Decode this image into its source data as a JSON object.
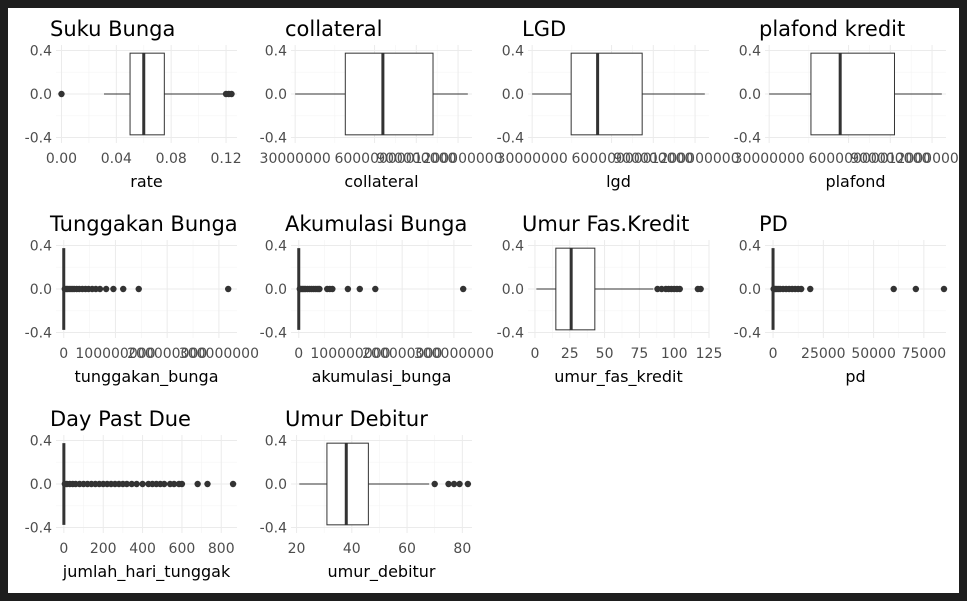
{
  "chart_data": [
    {
      "type": "boxplot",
      "title": "Suku Bunga",
      "xlabel": "rate",
      "xlim": [
        -0.004,
        0.128
      ],
      "xticks": [
        {
          "v": 0,
          "label": "0.00"
        },
        {
          "v": 0.04,
          "label": "0.04"
        },
        {
          "v": 0.08,
          "label": "0.08"
        },
        {
          "v": 0.12,
          "label": "0.12"
        }
      ],
      "yticks": [
        "0.4",
        "0.0",
        "-0.4"
      ],
      "box": {
        "q1": 0.05,
        "median": 0.06,
        "q3": 0.075,
        "whisker_low": 0.031,
        "whisker_high": 0.12
      },
      "outliers": [
        0.0,
        0.12,
        0.122,
        0.124
      ]
    },
    {
      "type": "boxplot",
      "title": "collateral",
      "xlabel": "collateral",
      "xlim": [
        0,
        1300000000
      ],
      "xticks": [
        {
          "v": 30000000,
          "label": "30000000"
        },
        {
          "v": 600000000,
          "label": "600000000"
        },
        {
          "v": 900000000,
          "label": "900000000"
        },
        {
          "v": 1200000000,
          "label": "1200000000"
        }
      ],
      "yticks": [
        "0.4",
        "0.0",
        "-0.4"
      ],
      "box": {
        "q1": 390000000,
        "median": 660000000,
        "q3": 1020000000,
        "whisker_low": 30000000,
        "whisker_high": 1270000000
      },
      "outliers": []
    },
    {
      "type": "boxplot",
      "title": "LGD",
      "xlabel": "lgd",
      "xlim": [
        0,
        1300000000
      ],
      "xticks": [
        {
          "v": 30000000,
          "label": "30000000"
        },
        {
          "v": 600000000,
          "label": "600000000"
        },
        {
          "v": 900000000,
          "label": "900000000"
        },
        {
          "v": 1200000000,
          "label": "1200000000"
        }
      ],
      "yticks": [
        "0.4",
        "0.0",
        "-0.4"
      ],
      "box": {
        "q1": 310000000,
        "median": 500000000,
        "q3": 820000000,
        "whisker_low": 30000000,
        "whisker_high": 1270000000
      },
      "outliers": []
    },
    {
      "type": "boxplot",
      "title": "plafond kredit",
      "xlabel": "plafond",
      "xlim": [
        0,
        1300000000
      ],
      "xticks": [
        {
          "v": 30000000,
          "label": "30000000"
        },
        {
          "v": 600000000,
          "label": "600000000"
        },
        {
          "v": 900000000,
          "label": "900000000"
        },
        {
          "v": 1200000000,
          "label": "1200000000"
        }
      ],
      "yticks": [
        "0.4",
        "0.0",
        "-0.4"
      ],
      "box": {
        "q1": 330000000,
        "median": 540000000,
        "q3": 930000000,
        "whisker_low": 30000000,
        "whisker_high": 1270000000
      },
      "outliers": []
    },
    {
      "type": "boxplot",
      "title": "Tunggakan Bunga",
      "xlabel": "tunggakan_bunga",
      "xlim": [
        -15000000,
        335000000
      ],
      "xticks": [
        {
          "v": 0,
          "label": "0"
        },
        {
          "v": 100000000,
          "label": "100000000"
        },
        {
          "v": 200000000,
          "label": "200000000"
        },
        {
          "v": 300000000,
          "label": "300000000"
        }
      ],
      "yticks": [
        "0.4",
        "0.0",
        "-0.4"
      ],
      "box": {
        "q1": 0,
        "median": 0,
        "q3": 0,
        "whisker_low": 0,
        "whisker_high": 0
      },
      "outliers": [
        2000000,
        5000000,
        8000000,
        12000000,
        16000000,
        20000000,
        25000000,
        30000000,
        36000000,
        42000000,
        48000000,
        55000000,
        62000000,
        70000000,
        82000000,
        96000000,
        115000000,
        145000000,
        318000000
      ]
    },
    {
      "type": "boxplot",
      "title": "Akumulasi Bunga",
      "xlabel": "akumulasi_bunga",
      "xlim": [
        -15000000,
        335000000
      ],
      "xticks": [
        {
          "v": 0,
          "label": "0"
        },
        {
          "v": 100000000,
          "label": "100000000"
        },
        {
          "v": 200000000,
          "label": "200000000"
        },
        {
          "v": 300000000,
          "label": "300000000"
        }
      ],
      "yticks": [
        "0.4",
        "0.0",
        "-0.4"
      ],
      "box": {
        "q1": 0,
        "median": 0,
        "q3": 0,
        "whisker_low": 0,
        "whisker_high": 0
      },
      "outliers": [
        2000000,
        4000000,
        7000000,
        10000000,
        13000000,
        17000000,
        21000000,
        25000000,
        29000000,
        33000000,
        37000000,
        40000000,
        55000000,
        60000000,
        65000000,
        95000000,
        118000000,
        148000000,
        318000000
      ]
    },
    {
      "type": "boxplot",
      "title": "Umur Fas.Kredit",
      "xlabel": "umur_fas_kredit",
      "xlim": [
        -5,
        125
      ],
      "xticks": [
        {
          "v": 0,
          "label": "0"
        },
        {
          "v": 25,
          "label": "25"
        },
        {
          "v": 50,
          "label": "50"
        },
        {
          "v": 75,
          "label": "75"
        },
        {
          "v": 100,
          "label": "100"
        },
        {
          "v": 125,
          "label": "125"
        }
      ],
      "yticks": [
        "0.4",
        "0.0",
        "-0.4"
      ],
      "box": {
        "q1": 15,
        "median": 26,
        "q3": 43,
        "whisker_low": 1,
        "whisker_high": 85
      },
      "outliers": [
        88,
        91,
        94,
        96,
        98,
        100,
        102,
        104,
        117,
        119
      ]
    },
    {
      "type": "boxplot",
      "title": "PD",
      "xlabel": "pd",
      "xlim": [
        -4000,
        86000
      ],
      "xticks": [
        {
          "v": 0,
          "label": "0"
        },
        {
          "v": 25000,
          "label": "25000"
        },
        {
          "v": 50000,
          "label": "50000"
        },
        {
          "v": 75000,
          "label": "75000"
        }
      ],
      "yticks": [
        "0.4",
        "0.0",
        "-0.4"
      ],
      "box": {
        "q1": 0,
        "median": 0,
        "q3": 0,
        "whisker_low": 0,
        "whisker_high": 0
      },
      "outliers": [
        300,
        800,
        1500,
        2500,
        3500,
        5000,
        6500,
        8000,
        9500,
        11000,
        12500,
        14000,
        18500,
        60000,
        71000,
        85000
      ]
    },
    {
      "type": "boxplot",
      "title": "Day Past Due",
      "xlabel": "jumlah_hari_tunggak",
      "xlim": [
        -40,
        880
      ],
      "xticks": [
        {
          "v": 0,
          "label": "0"
        },
        {
          "v": 200,
          "label": "200"
        },
        {
          "v": 400,
          "label": "400"
        },
        {
          "v": 600,
          "label": "600"
        },
        {
          "v": 800,
          "label": "800"
        }
      ],
      "yticks": [
        "0.4",
        "0.0",
        "-0.4"
      ],
      "box": {
        "q1": 0,
        "median": 0,
        "q3": 0,
        "whisker_low": 0,
        "whisker_high": 0
      },
      "outliers": [
        5,
        15,
        30,
        45,
        60,
        80,
        100,
        120,
        140,
        160,
        180,
        200,
        220,
        240,
        260,
        280,
        300,
        320,
        345,
        370,
        400,
        430,
        450,
        470,
        490,
        510,
        540,
        560,
        585,
        600,
        680,
        730,
        860
      ]
    },
    {
      "type": "boxplot",
      "title": "Umur Debitur",
      "xlabel": "umur_debitur",
      "xlim": [
        18,
        83.5
      ],
      "xticks": [
        {
          "v": 20,
          "label": "20"
        },
        {
          "v": 40,
          "label": "40"
        },
        {
          "v": 60,
          "label": "60"
        },
        {
          "v": 80,
          "label": "80"
        }
      ],
      "yticks": [
        "0.4",
        "0.0",
        "-0.4"
      ],
      "box": {
        "q1": 31,
        "median": 38,
        "q3": 46,
        "whisker_low": 21,
        "whisker_high": 68
      },
      "outliers": [
        70,
        75,
        77,
        79,
        82
      ]
    }
  ]
}
